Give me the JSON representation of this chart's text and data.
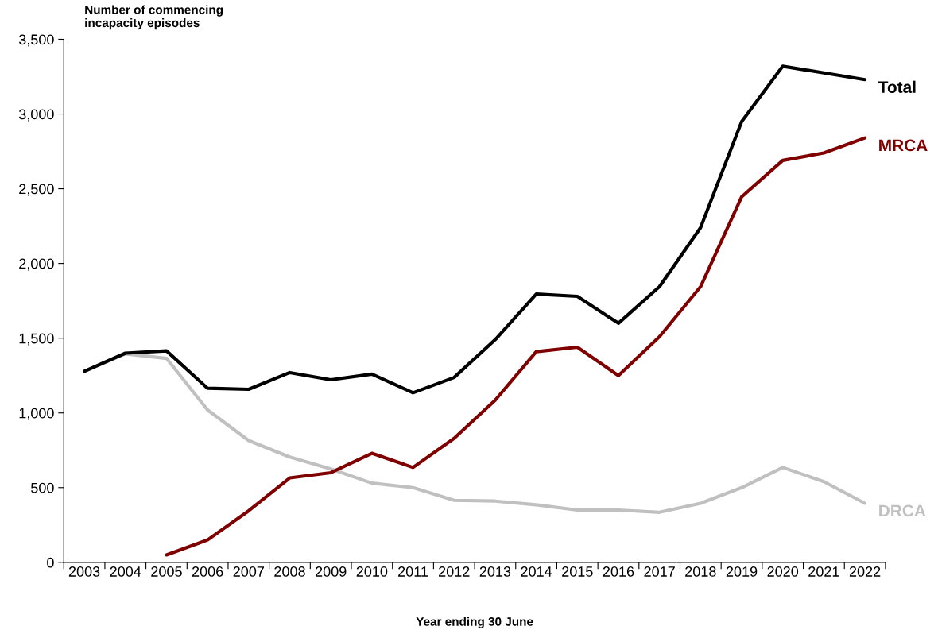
{
  "chart_data": {
    "type": "line",
    "ylabel": "Number of commencing\nincapacity episodes",
    "xlabel": "Year ending 30 June",
    "categories": [
      "2003",
      "2004",
      "2005",
      "2006",
      "2007",
      "2008",
      "2009",
      "2010",
      "2011",
      "2012",
      "2013",
      "2014",
      "2015",
      "2016",
      "2017",
      "2018",
      "2019",
      "2020",
      "2021",
      "2022"
    ],
    "series": [
      {
        "name": "Total",
        "color": "#000000",
        "values": [
          1278,
          1400,
          1415,
          1165,
          1158,
          1270,
          1222,
          1260,
          1135,
          1237,
          1490,
          1795,
          1780,
          1600,
          1845,
          2240,
          2950,
          3320,
          3275,
          3230
        ]
      },
      {
        "name": "MRCA",
        "color": "#800000",
        "values": [
          null,
          null,
          50,
          150,
          345,
          565,
          600,
          730,
          635,
          830,
          1085,
          1410,
          1440,
          1250,
          1510,
          1845,
          2446,
          2690,
          2740,
          2840
        ]
      },
      {
        "name": "DRCA",
        "color": "#c0c0c0",
        "values": [
          1278,
          1395,
          1365,
          1020,
          815,
          705,
          625,
          530,
          500,
          415,
          410,
          385,
          350,
          350,
          335,
          395,
          500,
          635,
          540,
          395
        ]
      }
    ],
    "ylim": [
      0,
      3500
    ],
    "yticks": [
      {
        "value": 0,
        "label": "0"
      },
      {
        "value": 500,
        "label": "500"
      },
      {
        "value": 1000,
        "label": "1,000"
      },
      {
        "value": 1500,
        "label": "1,500"
      },
      {
        "value": 2000,
        "label": "2,000"
      },
      {
        "value": 2500,
        "label": "2,500"
      },
      {
        "value": 3000,
        "label": "3,000"
      },
      {
        "value": 3500,
        "label": "3,500"
      }
    ],
    "grid": false,
    "legend": false,
    "marker": "none",
    "line_style": "solid"
  }
}
